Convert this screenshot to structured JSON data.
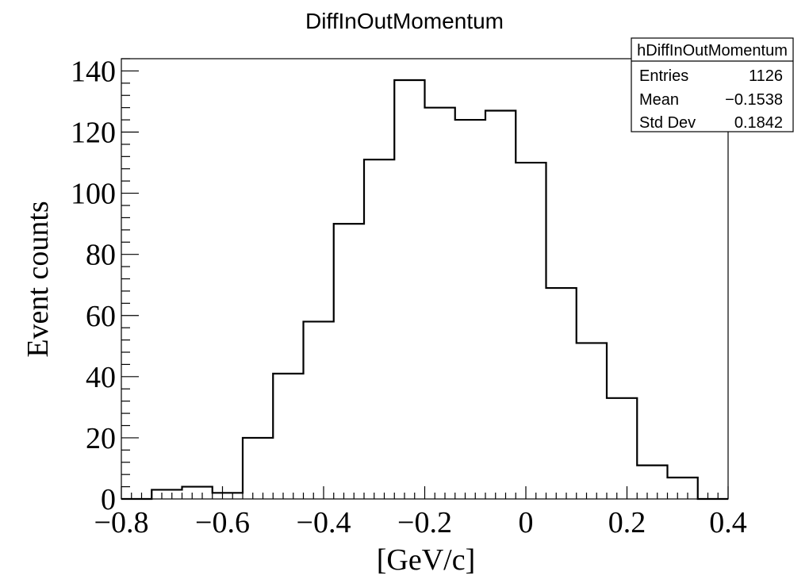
{
  "chart_data": {
    "type": "bar",
    "title": "DiffInOutMomentum",
    "xlabel": "[GeV/c]",
    "ylabel": "Event counts",
    "xlim": [
      -0.8,
      0.4
    ],
    "ylim": [
      0,
      144
    ],
    "x_ticks": [
      -0.8,
      -0.6,
      -0.4,
      -0.2,
      0,
      0.2,
      0.4
    ],
    "x_tick_labels": [
      "−0.8",
      "−0.6",
      "−0.4",
      "−0.2",
      "0",
      "0.2",
      "0.4"
    ],
    "y_ticks": [
      0,
      20,
      40,
      60,
      80,
      100,
      120,
      140
    ],
    "y_tick_labels": [
      "0",
      "20",
      "40",
      "60",
      "80",
      "100",
      "120",
      "140"
    ],
    "bin_edges": [
      -0.8,
      -0.74,
      -0.68,
      -0.62,
      -0.56,
      -0.5,
      -0.44,
      -0.38,
      -0.32,
      -0.26,
      -0.2,
      -0.14,
      -0.08,
      -0.02,
      0.04,
      0.1,
      0.16,
      0.22,
      0.28,
      0.34,
      0.4
    ],
    "values": [
      0,
      3,
      4,
      2,
      20,
      41,
      58,
      90,
      111,
      137,
      128,
      124,
      127,
      110,
      69,
      51,
      33,
      11,
      7,
      0
    ],
    "grid": false,
    "stats_box": {
      "name": "hDiffInOutMomentum",
      "rows": [
        {
          "label": "Entries",
          "value": "1126"
        },
        {
          "label": "Mean",
          "value": "−0.1538"
        },
        {
          "label": "Std Dev",
          "value": "0.1842"
        }
      ]
    }
  }
}
